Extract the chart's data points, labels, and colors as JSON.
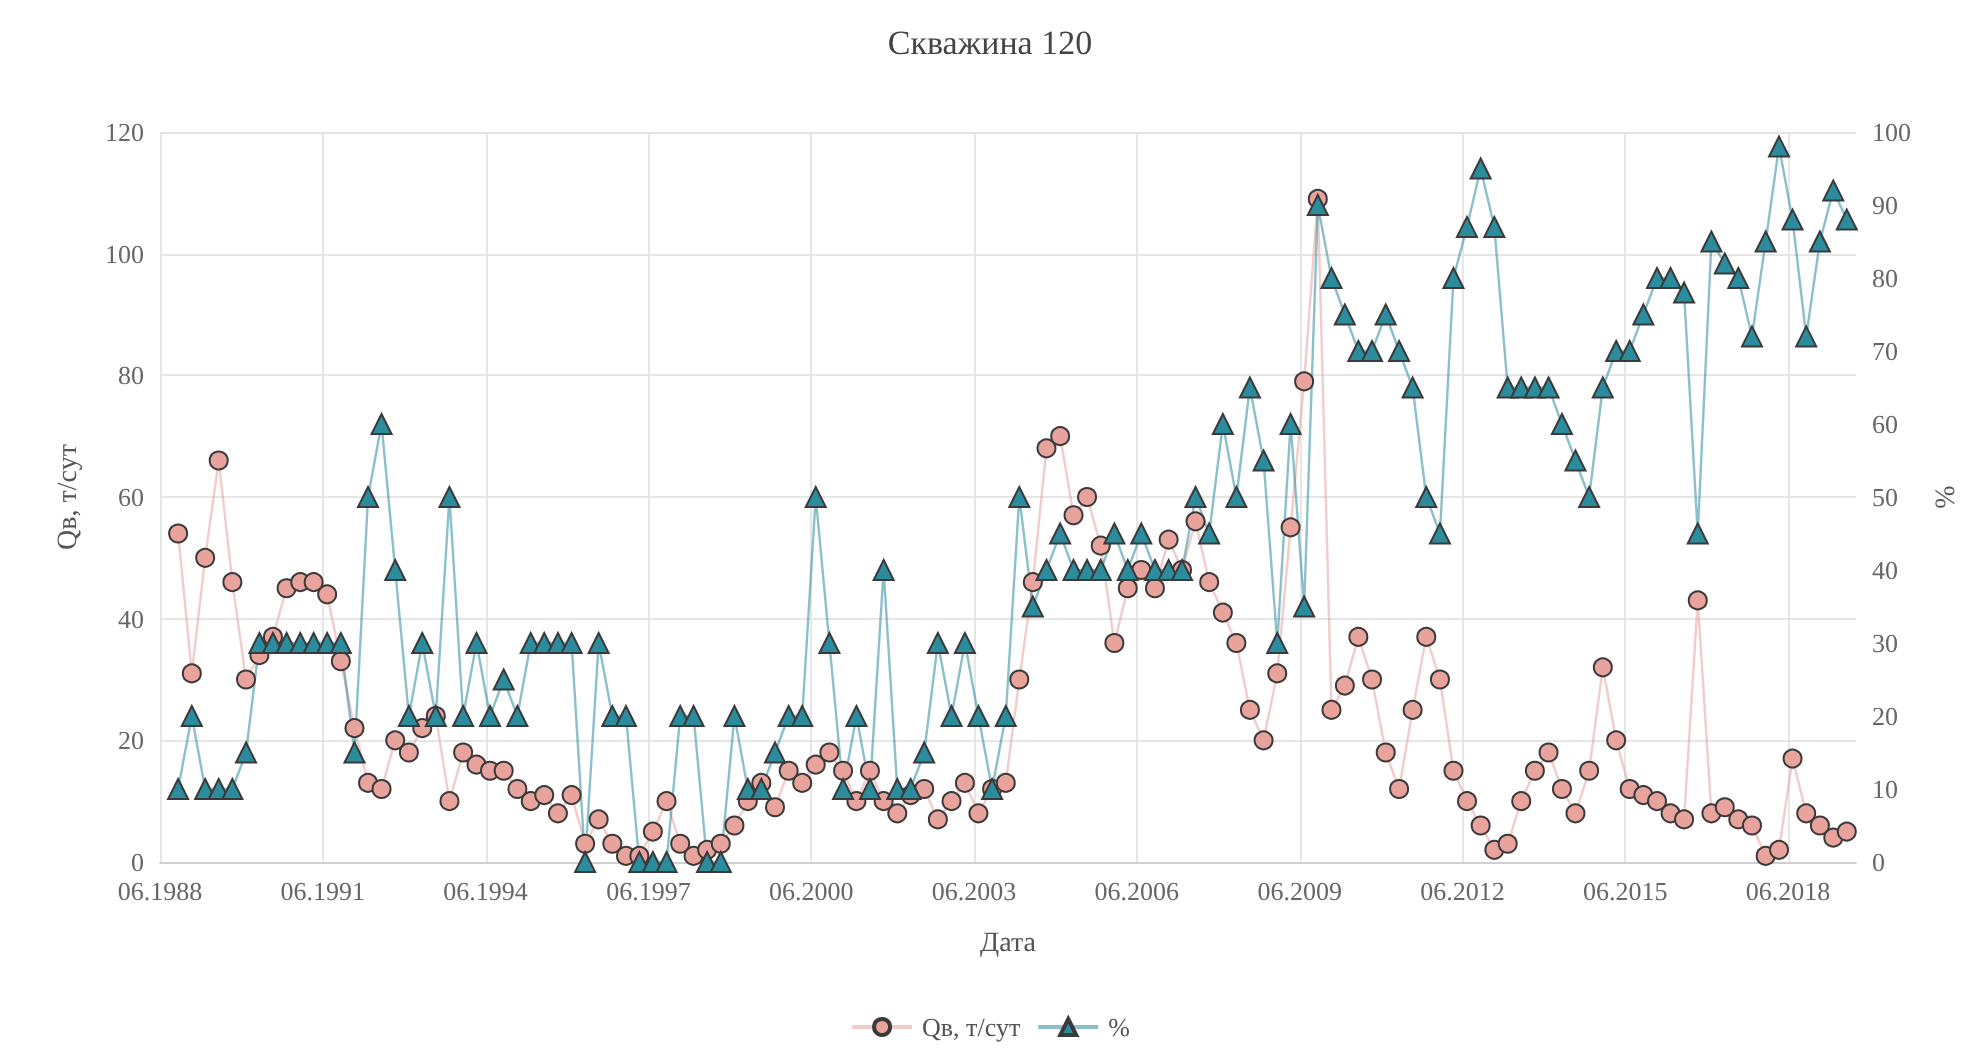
{
  "chart_data": {
    "type": "line",
    "title": "Скважина 120",
    "xlabel": "Дата",
    "ylabel": "Qв, т/сут",
    "y2label": "%",
    "x": [
      "1988-10",
      "1989-01",
      "1989-04",
      "1989-07",
      "1989-10",
      "1990-01",
      "1990-04",
      "1990-07",
      "1990-10",
      "1991-01",
      "1991-04",
      "1991-07",
      "1991-10",
      "1992-01",
      "1992-04",
      "1992-07",
      "1992-10",
      "1993-01",
      "1993-04",
      "1993-07",
      "1993-10",
      "1994-01",
      "1994-04",
      "1994-07",
      "1994-10",
      "1995-01",
      "1995-04",
      "1995-07",
      "1995-10",
      "1996-01",
      "1996-04",
      "1996-07",
      "1996-10",
      "1997-01",
      "1997-04",
      "1997-07",
      "1997-10",
      "1998-01",
      "1998-04",
      "1998-07",
      "1998-10",
      "1999-01",
      "1999-04",
      "1999-07",
      "1999-10",
      "2000-01",
      "2000-04",
      "2000-07",
      "2000-10",
      "2001-01",
      "2001-04",
      "2001-07",
      "2001-10",
      "2002-01",
      "2002-04",
      "2002-07",
      "2002-10",
      "2003-01",
      "2003-04",
      "2003-07",
      "2003-10",
      "2004-01",
      "2004-04",
      "2004-07",
      "2004-10",
      "2005-01",
      "2005-04",
      "2005-07",
      "2005-10",
      "2006-01",
      "2006-04",
      "2006-07",
      "2006-10",
      "2007-01",
      "2007-04",
      "2007-07",
      "2007-10",
      "2008-01",
      "2008-04",
      "2008-07",
      "2008-10",
      "2009-01",
      "2009-04",
      "2009-07",
      "2009-10",
      "2010-01",
      "2010-04",
      "2010-07",
      "2010-10",
      "2011-01",
      "2011-04",
      "2011-07",
      "2011-10",
      "2012-01",
      "2012-04",
      "2012-07",
      "2012-10",
      "2013-01",
      "2013-04",
      "2013-07",
      "2013-10",
      "2014-01",
      "2014-04",
      "2014-07",
      "2014-10",
      "2015-01",
      "2015-04",
      "2015-07",
      "2015-10",
      "2016-01",
      "2016-04",
      "2016-07",
      "2016-10",
      "2017-01",
      "2017-04",
      "2017-07",
      "2017-10",
      "2018-01",
      "2018-04",
      "2018-07",
      "2018-10",
      "2019-01",
      "2019-04",
      "2019-07"
    ],
    "series": [
      {
        "name": "Qв, т/сут",
        "color": "#e8a39c",
        "marker": "circle",
        "values": [
          54,
          31,
          50,
          66,
          46,
          30,
          34,
          37,
          45,
          46,
          46,
          44,
          33,
          22,
          13,
          12,
          20,
          18,
          22,
          24,
          10,
          18,
          16,
          15,
          15,
          12,
          10,
          11,
          8,
          11,
          3,
          7,
          3,
          1,
          1,
          5,
          10,
          3,
          1,
          2,
          3,
          6,
          10,
          13,
          9,
          15,
          13,
          16,
          18,
          15,
          10,
          15,
          10,
          8,
          11,
          12,
          7,
          10,
          13,
          8,
          12,
          13,
          30,
          46,
          68,
          70,
          57,
          60,
          52,
          36,
          45,
          48,
          45,
          53,
          48,
          56,
          46,
          41,
          36,
          25,
          20,
          31,
          55,
          79,
          109,
          25,
          29,
          37,
          30,
          18,
          12,
          25,
          37,
          30,
          15,
          10,
          6,
          2,
          3,
          10,
          15,
          18,
          12,
          8,
          15,
          32,
          20,
          12,
          11,
          10,
          8,
          7,
          43,
          8,
          9,
          7,
          6,
          1,
          2,
          17,
          8,
          6,
          4,
          5
        ]
      },
      {
        "name": "%",
        "color": "#2b8c9e",
        "marker": "triangle",
        "axis": "y2",
        "values": [
          10,
          20,
          10,
          10,
          10,
          15,
          30,
          30,
          30,
          30,
          30,
          30,
          30,
          15,
          50,
          60,
          40,
          20,
          30,
          20,
          50,
          20,
          30,
          20,
          25,
          20,
          30,
          30,
          30,
          30,
          0,
          30,
          20,
          20,
          0,
          0,
          0,
          20,
          20,
          0,
          0,
          20,
          10,
          10,
          15,
          20,
          20,
          50,
          30,
          10,
          20,
          10,
          40,
          10,
          10,
          15,
          30,
          20,
          30,
          20,
          10,
          20,
          50,
          35,
          40,
          45,
          40,
          40,
          40,
          45,
          40,
          45,
          40,
          40,
          40,
          50,
          45,
          60,
          50,
          65,
          55,
          30,
          60,
          35,
          90,
          80,
          75,
          70,
          70,
          75,
          70,
          65,
          50,
          45,
          80,
          87,
          95,
          87,
          65,
          65,
          65,
          65,
          60,
          55,
          50,
          65,
          70,
          70,
          75,
          80,
          80,
          78,
          45,
          85,
          82,
          80,
          72,
          85,
          98,
          88,
          72,
          85,
          92,
          88
        ]
      }
    ],
    "xlim": [
      "1988-06",
      "2019-09"
    ],
    "xticks": [
      {
        "value": "1988-06",
        "label": "06.1988"
      },
      {
        "value": "1991-06",
        "label": "06.1991"
      },
      {
        "value": "1994-06",
        "label": "06.1994"
      },
      {
        "value": "1997-06",
        "label": "06.1997"
      },
      {
        "value": "2000-06",
        "label": "06.2000"
      },
      {
        "value": "2003-06",
        "label": "06.2003"
      },
      {
        "value": "2006-06",
        "label": "06.2006"
      },
      {
        "value": "2009-06",
        "label": "06.2009"
      },
      {
        "value": "2012-06",
        "label": "06.2012"
      },
      {
        "value": "2015-06",
        "label": "06.2015"
      },
      {
        "value": "2018-06",
        "label": "06.2018"
      }
    ],
    "ylim": [
      0,
      120
    ],
    "yticks": [
      0,
      20,
      40,
      60,
      80,
      100,
      120
    ],
    "y2lim": [
      0,
      100
    ],
    "y2ticks": [
      0,
      10,
      20,
      30,
      40,
      50,
      60,
      70,
      80,
      90,
      100
    ],
    "grid": true,
    "legend": "bottom",
    "line_style": "solid"
  }
}
